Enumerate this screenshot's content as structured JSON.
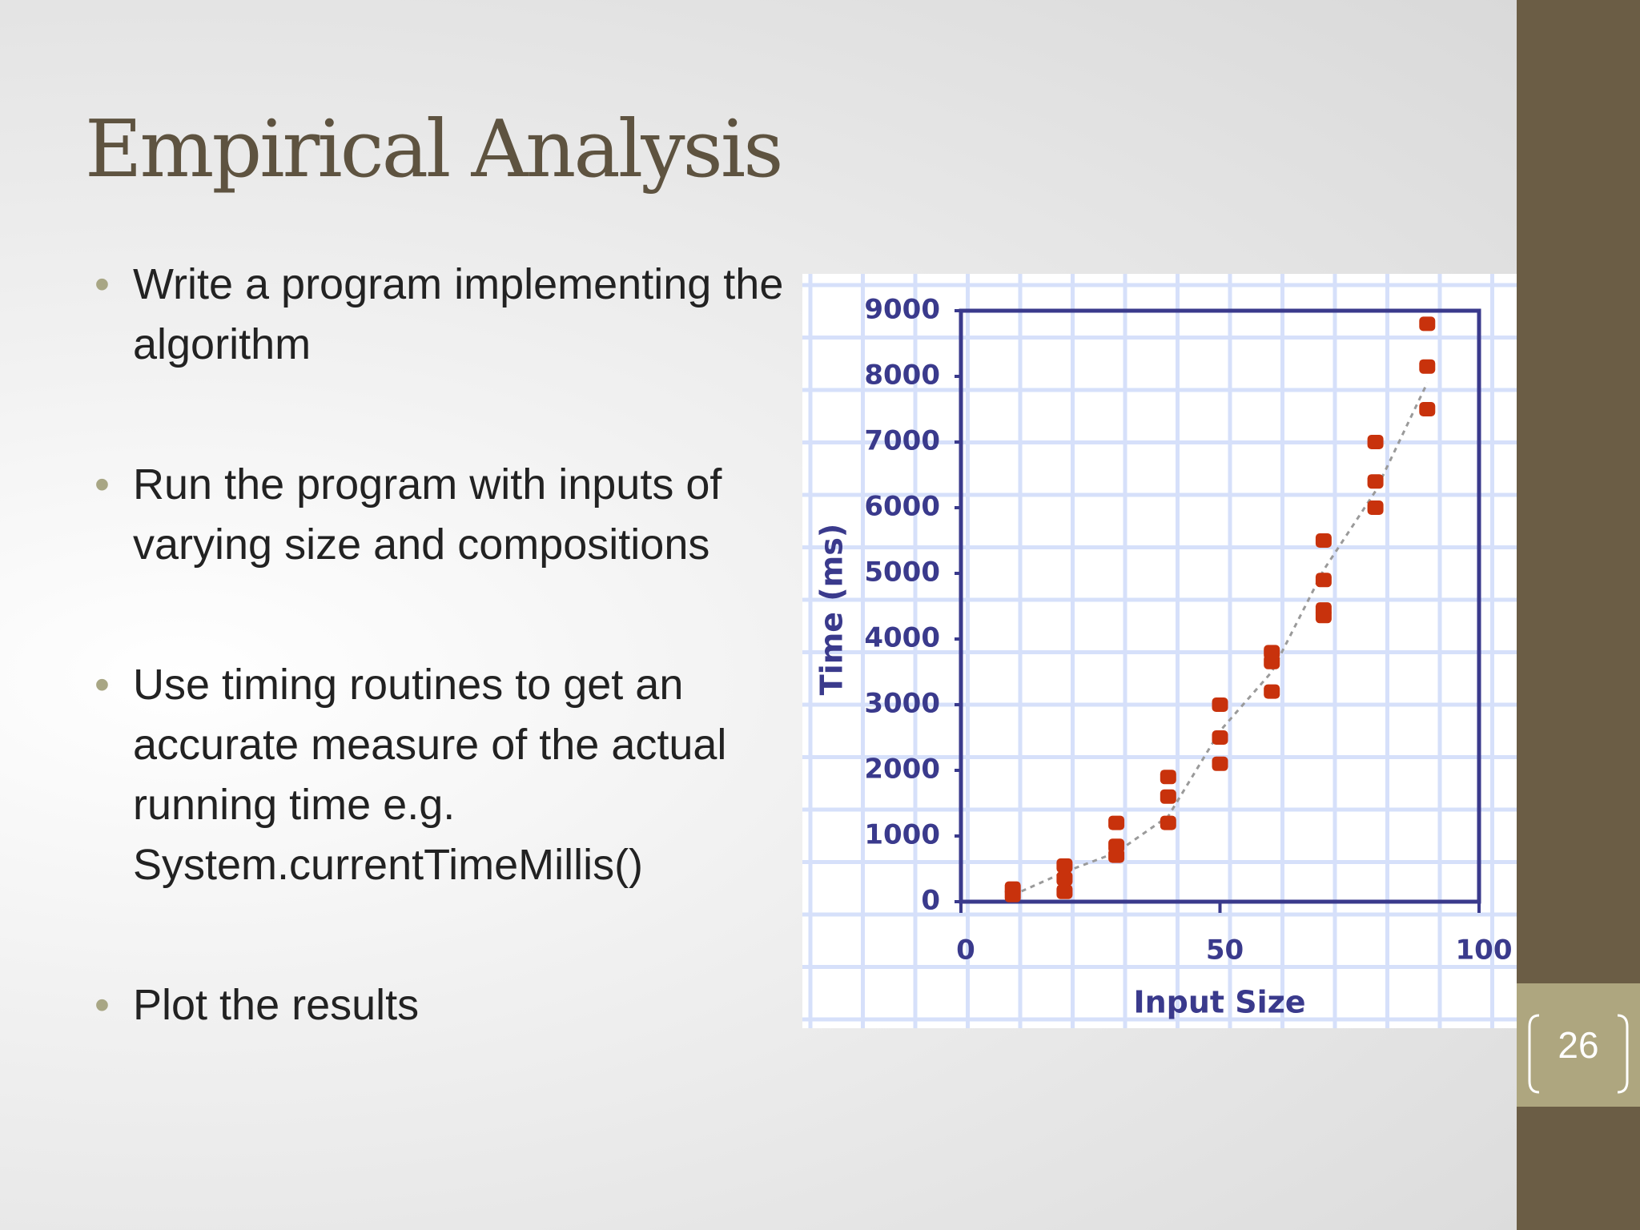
{
  "title": "Empirical Analysis",
  "bullets": [
    "Write a program implementing the algorithm",
    "Run the program with inputs of varying size and compositions",
    "Use timing routines to get an accurate measure of the actual running time e.g. System.currentTimeMillis()",
    "Plot the results"
  ],
  "slide_number": "26",
  "chart_data": {
    "type": "scatter",
    "xlabel": "Input Size",
    "ylabel": "Time (ms)",
    "xlim": [
      0,
      100
    ],
    "ylim": [
      0,
      9000
    ],
    "xticks": [
      0,
      50,
      100
    ],
    "yticks": [
      0,
      1000,
      2000,
      3000,
      4000,
      5000,
      6000,
      7000,
      8000,
      9000
    ],
    "series": [
      {
        "color": "#c8320c",
        "x": [
          10,
          10,
          20,
          20,
          20,
          30,
          30,
          30,
          40,
          40,
          40,
          50,
          50,
          50,
          60,
          60,
          60,
          70,
          70,
          70,
          70,
          80,
          80,
          80,
          90,
          90,
          90
        ],
        "y": [
          200,
          100,
          550,
          350,
          150,
          1200,
          850,
          700,
          1900,
          1600,
          1200,
          3000,
          2500,
          2100,
          3800,
          3650,
          3200,
          5500,
          4900,
          4450,
          4350,
          7000,
          6400,
          6000,
          8800,
          8150,
          7500
        ]
      }
    ],
    "trend": {
      "color": "#9a9a9a",
      "x": [
        10,
        20,
        30,
        40,
        50,
        60,
        70,
        80,
        90
      ],
      "y": [
        100,
        450,
        750,
        1300,
        2600,
        3500,
        5050,
        6250,
        7900
      ]
    }
  }
}
